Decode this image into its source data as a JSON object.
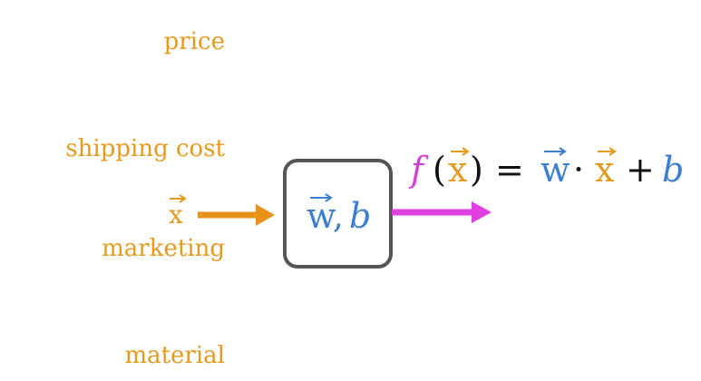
{
  "features": [
    "price",
    "shipping cost",
    "marketing",
    "material"
  ],
  "input": {
    "label": "x"
  },
  "model": {
    "weights": "w",
    "separator": ",",
    "bias": "b"
  },
  "output": {
    "function": "f",
    "open": "(",
    "arg": "x",
    "close": ")",
    "equals": "=",
    "weights": "w",
    "dot": "·",
    "input": "x",
    "plus": "+",
    "bias": "b"
  }
}
